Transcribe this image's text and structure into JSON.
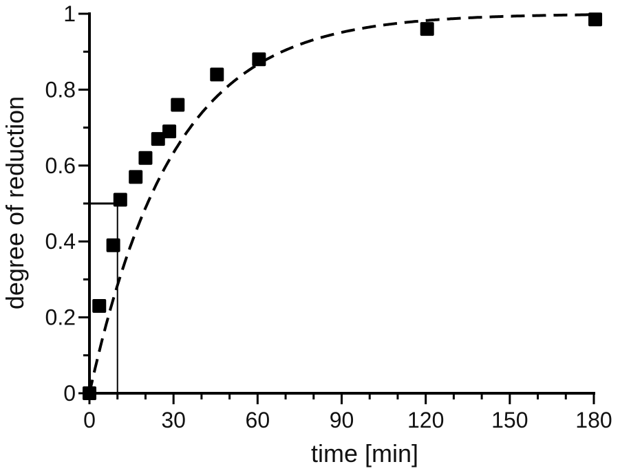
{
  "chart_data": {
    "type": "scatter",
    "title": "",
    "xlabel": "time [min]",
    "ylabel": "degree of reduction",
    "xlim": [
      0,
      180
    ],
    "ylim": [
      0,
      1
    ],
    "x_ticks": [
      0,
      30,
      60,
      90,
      120,
      150,
      180
    ],
    "x_tick_labels": [
      "0",
      "30",
      "60",
      "90",
      "120",
      "150",
      "180"
    ],
    "y_ticks": [
      0,
      0.2,
      0.4,
      0.6,
      0.8,
      1
    ],
    "y_tick_labels": [
      "0",
      "0.2",
      "0.4",
      "0.6",
      "0.8",
      "1"
    ],
    "grid": false,
    "legend": "none",
    "marker": "square",
    "colors": {
      "marker": "#000000",
      "fit": "#000000",
      "axis": "#000000"
    },
    "series": [
      {
        "points": [
          {
            "x": 0,
            "y": 0
          },
          {
            "x": 3.5,
            "y": 0.23
          },
          {
            "x": 8.5,
            "y": 0.39
          },
          {
            "x": 11,
            "y": 0.51
          },
          {
            "x": 16.5,
            "y": 0.57
          },
          {
            "x": 20,
            "y": 0.62
          },
          {
            "x": 24.5,
            "y": 0.67
          },
          {
            "x": 28.5,
            "y": 0.69
          },
          {
            "x": 31.5,
            "y": 0.76
          },
          {
            "x": 45.5,
            "y": 0.84
          },
          {
            "x": 60.5,
            "y": 0.88
          },
          {
            "x": 120.5,
            "y": 0.96
          },
          {
            "x": 180.5,
            "y": 0.985
          }
        ]
      }
    ],
    "fit": {
      "style": "dashed",
      "model": "first-order",
      "k_per_min": 0.0335
    },
    "half_life_marker": {
      "y": 0.5,
      "x": 10
    }
  }
}
